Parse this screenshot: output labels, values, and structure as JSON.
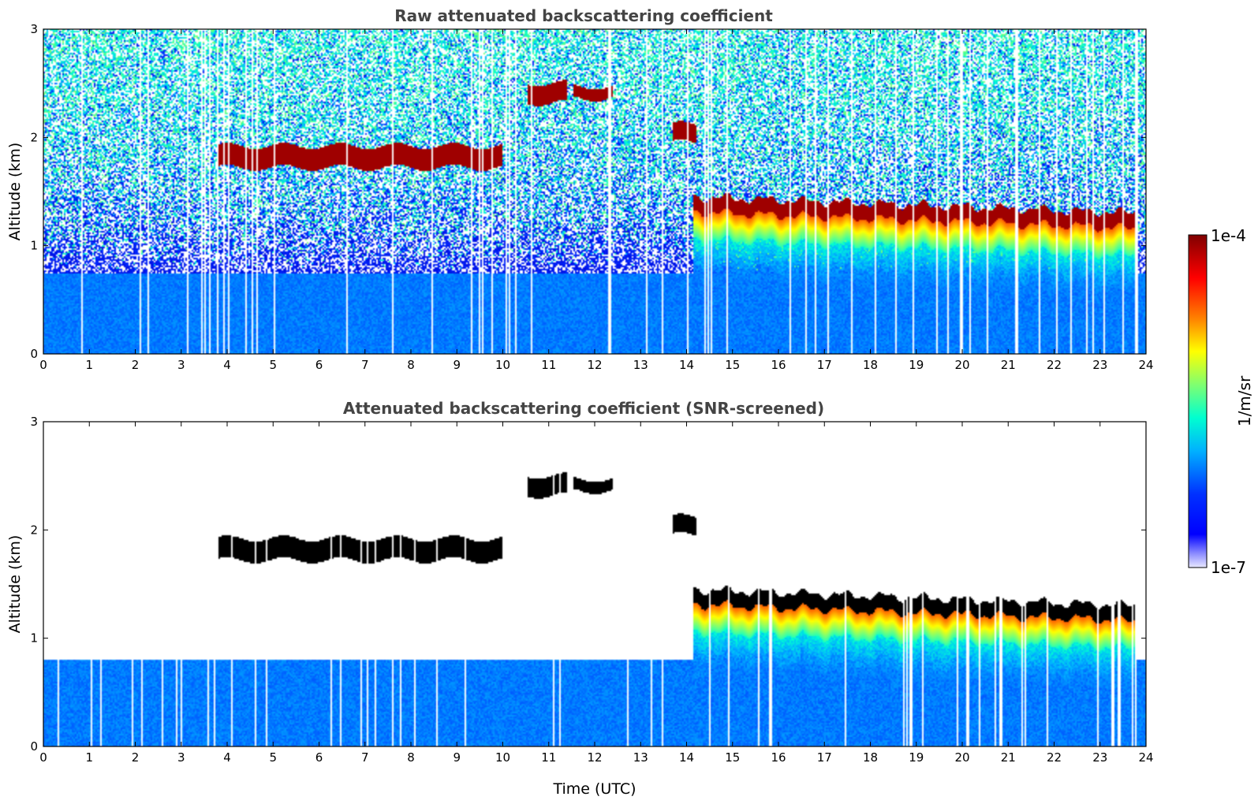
{
  "chart_data": [
    {
      "type": "heatmap",
      "title": "Raw attenuated backscattering coefficient",
      "xlabel": "",
      "ylabel": "Altitude (km)",
      "xlim": [
        0,
        24
      ],
      "ylim": [
        0,
        3
      ],
      "xticks": [
        "0",
        "1",
        "2",
        "3",
        "4",
        "5",
        "6",
        "7",
        "8",
        "9",
        "10",
        "11",
        "12",
        "13",
        "14",
        "15",
        "16",
        "17",
        "18",
        "19",
        "20",
        "21",
        "22",
        "23",
        "24"
      ],
      "yticks": [
        "0",
        "1",
        "2",
        "3"
      ],
      "screened": false,
      "features": [
        {
          "kind": "cloud",
          "t_start": 3.8,
          "t_end": 10.0,
          "alt_km": [
            1.72,
            1.92
          ],
          "level": 1.0
        },
        {
          "kind": "cloud",
          "t_start": 10.55,
          "t_end": 11.4,
          "alt_km": [
            2.32,
            2.5
          ],
          "level": 1.0
        },
        {
          "kind": "cloud",
          "t_start": 11.55,
          "t_end": 12.4,
          "alt_km": [
            2.36,
            2.47
          ],
          "level": 1.0
        },
        {
          "kind": "cloud",
          "t_start": 13.7,
          "t_end": 14.2,
          "alt_km": [
            1.95,
            2.12
          ],
          "level": 1.0
        },
        {
          "kind": "cloud_deck",
          "t_start": 14.15,
          "t_end": 23.8,
          "alt_km_top_start": 1.45,
          "alt_km_top_end": 1.3,
          "level": 1.0
        },
        {
          "kind": "boundary_layer",
          "t_start": 0.0,
          "t_end": 24.0,
          "alt_km": [
            0.0,
            0.75
          ],
          "level": 0.28
        }
      ]
    },
    {
      "type": "heatmap",
      "title": "Attenuated backscattering coefficient (SNR-screened)",
      "xlabel": "Time (UTC)",
      "ylabel": "Altitude (km)",
      "xlim": [
        0,
        24
      ],
      "ylim": [
        0,
        3
      ],
      "xticks": [
        "0",
        "1",
        "2",
        "3",
        "4",
        "5",
        "6",
        "7",
        "8",
        "9",
        "10",
        "11",
        "12",
        "13",
        "14",
        "15",
        "16",
        "17",
        "18",
        "19",
        "20",
        "21",
        "22",
        "23",
        "24"
      ],
      "yticks": [
        "0",
        "1",
        "2",
        "3"
      ],
      "screened": true,
      "features": [
        {
          "kind": "cloud",
          "t_start": 3.8,
          "t_end": 10.0,
          "alt_km": [
            1.72,
            1.92
          ],
          "level": 1.0
        },
        {
          "kind": "cloud",
          "t_start": 10.55,
          "t_end": 11.4,
          "alt_km": [
            2.32,
            2.5
          ],
          "level": 1.0
        },
        {
          "kind": "cloud",
          "t_start": 11.55,
          "t_end": 12.4,
          "alt_km": [
            2.36,
            2.47
          ],
          "level": 1.0
        },
        {
          "kind": "cloud",
          "t_start": 13.7,
          "t_end": 14.2,
          "alt_km": [
            1.95,
            2.12
          ],
          "level": 1.0
        },
        {
          "kind": "cloud_deck",
          "t_start": 14.15,
          "t_end": 23.8,
          "alt_km_top_start": 1.45,
          "alt_km_top_end": 1.3,
          "level": 1.0
        },
        {
          "kind": "boundary_layer",
          "t_start": 0.0,
          "t_end": 24.0,
          "alt_km": [
            0.0,
            0.8
          ],
          "level": 0.28
        }
      ]
    }
  ],
  "colorbar": {
    "max_label": "1e-4",
    "min_label": "1e-7",
    "unit_label": "1/m/sr",
    "scale": "log"
  }
}
